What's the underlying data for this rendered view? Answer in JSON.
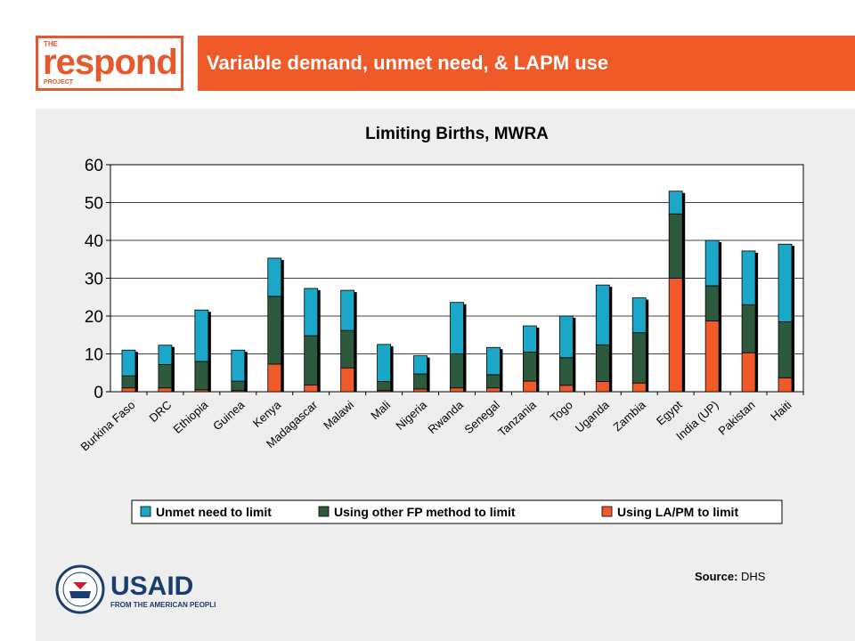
{
  "header": {
    "logo": {
      "the": "THE",
      "main": "respond",
      "project": "PROJECT"
    },
    "title": "Variable demand, unmet need, & LAPM use"
  },
  "chart_data": {
    "type": "bar",
    "stacked": true,
    "title": "Limiting Births, MWRA",
    "xlabel": "",
    "ylabel": "",
    "ylim": [
      0,
      60
    ],
    "yticks": [
      0,
      10,
      20,
      30,
      40,
      50,
      60
    ],
    "grid": true,
    "legend_position": "bottom",
    "categories": [
      "Burkina Faso",
      "DRC",
      "Ethiopia",
      "Guinea",
      "Kenya",
      "Madagascar",
      "Malawi",
      "Mali",
      "Nigeria",
      "Rwanda",
      "Senegal",
      "Tanzania",
      "Togo",
      "Uganda",
      "Zambia",
      "Egypt",
      "India (UP)",
      "Pakistan",
      "Haiti"
    ],
    "series": [
      {
        "name": "Using LA/PM to limit",
        "color": "#f05a28",
        "values": [
          1.0,
          1.0,
          0.5,
          0.3,
          7.3,
          1.8,
          6.3,
          0.3,
          0.7,
          1.0,
          1.0,
          2.8,
          1.7,
          2.7,
          2.3,
          30.0,
          18.7,
          10.3,
          3.7
        ]
      },
      {
        "name": "Using other FP method to limit",
        "color": "#2d5a3d",
        "values": [
          3.2,
          6.2,
          7.5,
          2.5,
          17.9,
          13.0,
          9.9,
          2.4,
          4.0,
          9.0,
          3.5,
          7.7,
          7.3,
          9.7,
          13.3,
          17.0,
          9.3,
          12.7,
          14.8
        ]
      },
      {
        "name": "Unmet need to limit",
        "color": "#1aa7c8",
        "values": [
          6.8,
          5.1,
          13.6,
          8.2,
          10.1,
          12.5,
          10.6,
          9.8,
          4.8,
          13.6,
          7.2,
          6.9,
          11.0,
          15.8,
          9.2,
          6.0,
          12.0,
          14.2,
          20.5
        ]
      }
    ],
    "legend_order": [
      "Unmet need to limit",
      "Using other FP method to limit",
      "Using LA/PM to limit"
    ]
  },
  "footer": {
    "usaid_logo": {
      "main": "USAID",
      "tagline": "FROM THE AMERICAN PEOPLE"
    },
    "source_label": "Source:",
    "source_value": "DHS"
  }
}
